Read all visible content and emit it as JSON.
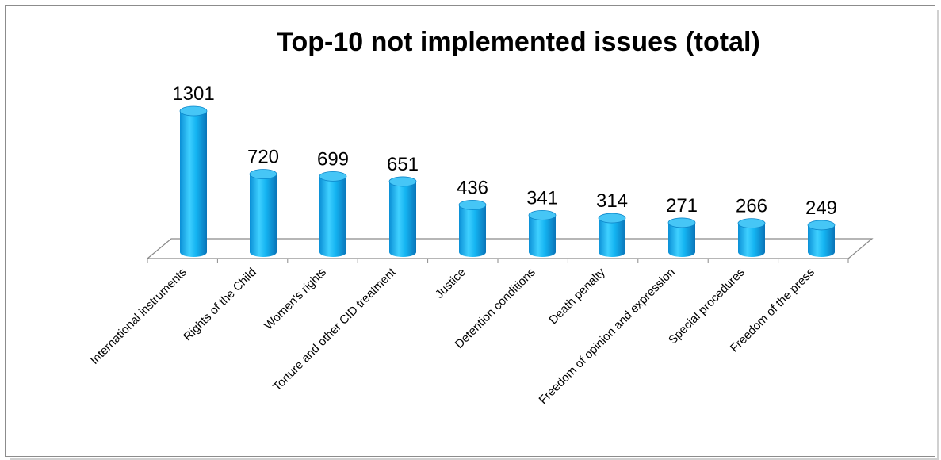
{
  "chart_data": {
    "type": "bar",
    "title": "Top-10 not implemented issues (total)",
    "categories": [
      "International instruments",
      "Rights of the Child",
      "Women's rights",
      "Torture and other CID treatment",
      "Justice",
      "Detention conditions",
      "Death penalty",
      "Freedom of opinion and expression",
      "Special procedures",
      "Freedom of the press"
    ],
    "values": [
      1301,
      720,
      699,
      651,
      436,
      341,
      314,
      271,
      266,
      249
    ],
    "data_labels": [
      "1301",
      "720",
      "699",
      "651",
      "436",
      "341",
      "314",
      "271",
      "266",
      "249"
    ],
    "ylim": [
      0,
      1301
    ],
    "grid": false,
    "legend": "none",
    "bar_style": "3d-cylinder",
    "colors": {
      "bar_light": "#5fd4ff",
      "bar_mid": "#12b2f0",
      "bar_dark": "#0a7cc0",
      "bar_top": "#46c6f6",
      "floor": "#ffffff",
      "floor_stroke": "#8a8a8a"
    }
  }
}
